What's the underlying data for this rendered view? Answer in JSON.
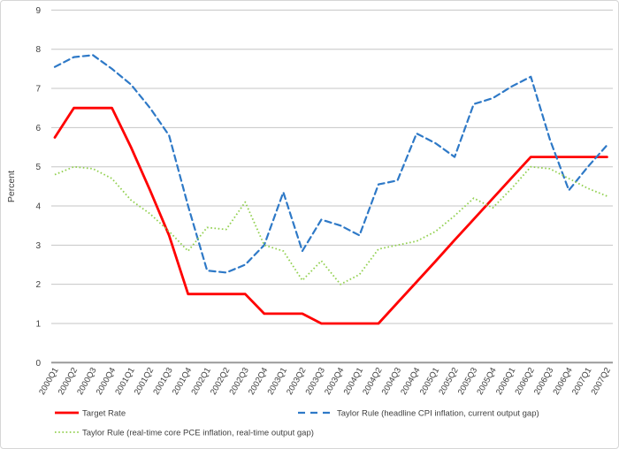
{
  "chart_data": {
    "type": "line",
    "title": "",
    "xlabel": "",
    "ylabel": "Percent",
    "ylim": [
      0,
      9
    ],
    "ytick_step": 1,
    "ytick_labels": [
      "0",
      "1",
      "2",
      "3",
      "4",
      "5",
      "6",
      "7",
      "8",
      "9"
    ],
    "grid": true,
    "legend_position": "bottom",
    "categories": [
      "2000Q1",
      "2000Q2",
      "2000Q3",
      "2000Q4",
      "2001Q1",
      "2001Q2",
      "2001Q3",
      "2001Q4",
      "2002Q1",
      "2002Q2",
      "2002Q3",
      "2002Q4",
      "2003Q1",
      "2003Q2",
      "2003Q3",
      "2003Q4",
      "2004Q1",
      "2004Q2",
      "2004Q3",
      "2004Q4",
      "2005Q1",
      "2005Q2",
      "2005Q3",
      "2005Q4",
      "2006Q1",
      "2006Q2",
      "2006Q3",
      "2006Q4",
      "2007Q1",
      "2007Q2"
    ],
    "series": [
      {
        "id": "target-rate",
        "name": "Target Rate",
        "color": "#FF0000",
        "style": "solid",
        "values": [
          5.75,
          6.5,
          6.5,
          6.5,
          5.5,
          4.4,
          3.25,
          1.75,
          1.75,
          1.75,
          1.75,
          1.25,
          1.25,
          1.25,
          1.0,
          1.0,
          1.0,
          1.0,
          1.53,
          2.06,
          2.59,
          3.13,
          3.66,
          4.19,
          4.72,
          5.25,
          5.25,
          5.25,
          5.25,
          5.25
        ]
      },
      {
        "id": "taylor-cpi",
        "name": "Taylor Rule (headline CPI inflation, current output gap)",
        "color": "#2E79C7",
        "style": "dashed",
        "values": [
          7.55,
          7.8,
          7.85,
          7.5,
          7.1,
          6.5,
          5.8,
          4.0,
          2.35,
          2.3,
          2.5,
          3.0,
          4.35,
          2.85,
          3.65,
          3.5,
          3.25,
          4.55,
          4.65,
          5.85,
          5.6,
          5.25,
          6.6,
          6.75,
          7.05,
          7.3,
          5.7,
          4.4,
          5.0,
          5.55
        ]
      },
      {
        "id": "taylor-pce",
        "name": "Taylor Rule (real-time core PCE inflation, real-time output gap)",
        "color": "#92D050",
        "style": "dotted",
        "values": [
          4.8,
          5.0,
          4.95,
          4.7,
          4.15,
          3.8,
          3.35,
          2.85,
          3.45,
          3.4,
          4.1,
          3.0,
          2.85,
          2.1,
          2.6,
          2.0,
          2.25,
          2.9,
          3.0,
          3.1,
          3.35,
          3.75,
          4.2,
          3.95,
          4.45,
          5.0,
          4.95,
          4.7,
          4.45,
          4.25
        ]
      }
    ]
  },
  "colors": {
    "gridline": "#C6C6C6",
    "zero_axis": "#9A9A9A",
    "tick_text": "#404040",
    "axis_title_text": "#3F3F3F",
    "background": "#FFFFFF",
    "border": "#D6D6D6"
  }
}
